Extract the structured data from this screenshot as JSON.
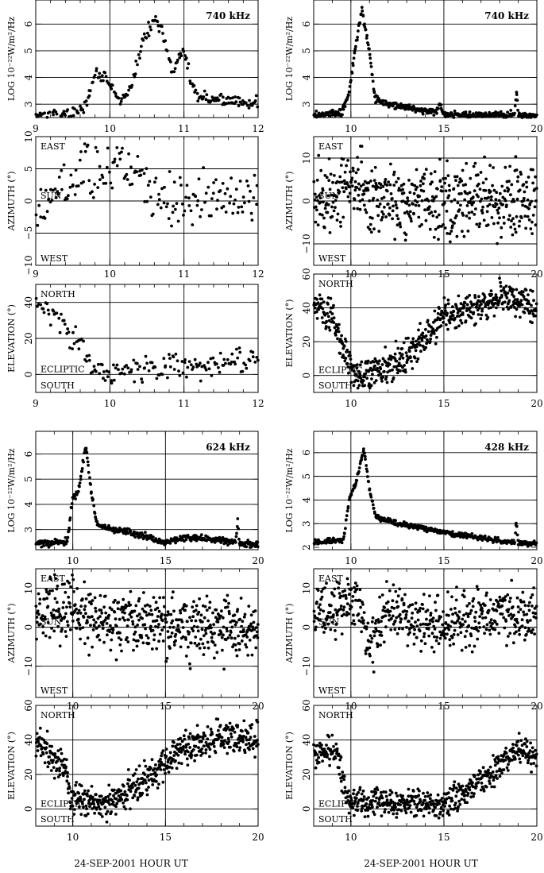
{
  "figure": {
    "xlabel_left": "24-SEP-2001 HOUR UT",
    "xlabel_right": "24-SEP-2001 HOUR UT"
  },
  "chart_data": [
    {
      "id": "g1-flux",
      "type": "scatter",
      "xlabel": "",
      "ylabel": "LOG 10⁻²²W/m²/Hz",
      "xlim": [
        9,
        12
      ],
      "ylim": [
        2.5,
        6.9
      ],
      "xticks": [
        9,
        10,
        11,
        12
      ],
      "yticks": [
        3,
        4,
        5,
        6
      ],
      "grid_x": [
        10,
        11
      ],
      "grid_y": [
        3,
        4,
        5,
        6
      ],
      "annotation": "740 kHz",
      "trend": [
        [
          9,
          2.6
        ],
        [
          9.5,
          2.65
        ],
        [
          9.7,
          3
        ],
        [
          9.8,
          4.2
        ],
        [
          9.95,
          4
        ],
        [
          10.15,
          3
        ],
        [
          10.3,
          3.8
        ],
        [
          10.45,
          5.4
        ],
        [
          10.6,
          6.2
        ],
        [
          10.7,
          5.8
        ],
        [
          10.85,
          4.2
        ],
        [
          11.0,
          5.0
        ],
        [
          11.12,
          3.5
        ],
        [
          11.3,
          3.2
        ],
        [
          12,
          3.05
        ]
      ],
      "npoints": 220,
      "spread": 0.15
    },
    {
      "id": "g1-azimuth",
      "type": "scatter",
      "ylabel": "AZIMUTH (°)",
      "xlim": [
        9,
        12
      ],
      "ylim": [
        -10,
        10
      ],
      "xticks": [
        9,
        10,
        11,
        12
      ],
      "yticks": [
        -10,
        -5,
        0,
        5,
        10
      ],
      "grid_x": [
        10,
        11
      ],
      "grid_y": [
        -5,
        0,
        5
      ],
      "dir_top": "EAST",
      "dir_mid": "SUN",
      "dir_bot": "WEST",
      "trend": [
        [
          9,
          -1
        ],
        [
          9.4,
          3
        ],
        [
          9.8,
          5
        ],
        [
          10.4,
          4
        ],
        [
          10.7,
          0
        ],
        [
          12,
          0.5
        ]
      ],
      "npoints": 180,
      "spread": 2.5
    },
    {
      "id": "g1-elevation",
      "type": "scatter",
      "ylabel": "ELEVATION (°)",
      "xlim": [
        9,
        12
      ],
      "ylim": [
        -10,
        50
      ],
      "xticks": [
        9,
        10,
        11,
        12
      ],
      "yticks": [
        0,
        20,
        40
      ],
      "grid_x": [
        10,
        11
      ],
      "grid_y": [
        0,
        20,
        40
      ],
      "dir_top": "NORTH",
      "dir_mid": "ECLIPTIC",
      "dir_bot": "SOUTH",
      "trend": [
        [
          9,
          40
        ],
        [
          9.3,
          33
        ],
        [
          9.6,
          15
        ],
        [
          9.8,
          0
        ],
        [
          10.3,
          2
        ],
        [
          12,
          8
        ]
      ],
      "npoints": 170,
      "spread": 4.5
    },
    {
      "id": "g2-flux",
      "type": "scatter",
      "ylabel": "LOG 10⁻²²W/m²/Hz",
      "xlim": [
        8,
        20
      ],
      "ylim": [
        2.5,
        6.9
      ],
      "xticks": [
        10,
        15,
        20
      ],
      "yticks": [
        3,
        4,
        5,
        6
      ],
      "grid_x": [
        10,
        15
      ],
      "grid_y": [
        3,
        4,
        5,
        6
      ],
      "annotation": "740 kHz",
      "trend": [
        [
          8,
          2.6
        ],
        [
          9.5,
          2.65
        ],
        [
          9.9,
          3.4
        ],
        [
          10.2,
          5
        ],
        [
          10.6,
          6.5
        ],
        [
          11,
          5
        ],
        [
          11.3,
          3.2
        ],
        [
          12,
          3
        ],
        [
          14.5,
          2.7
        ],
        [
          14.8,
          3
        ],
        [
          15,
          2.6
        ],
        [
          18.8,
          2.6
        ],
        [
          18.9,
          3.6
        ],
        [
          19,
          2.6
        ],
        [
          20,
          2.55
        ]
      ],
      "npoints": 420,
      "spread": 0.08
    },
    {
      "id": "g2-azimuth",
      "type": "scatter",
      "ylabel": "AZIMUTH (°)",
      "xlim": [
        8,
        20
      ],
      "ylim": [
        -15,
        15
      ],
      "xticks": [
        10,
        15,
        20
      ],
      "yticks": [
        -10,
        0,
        10
      ],
      "grid_x": [
        10,
        15
      ],
      "grid_y": [
        -10,
        0,
        10
      ],
      "dir_top": "EAST",
      "dir_mid": "SUN",
      "dir_bot": "WEST",
      "trend": [
        [
          8,
          0
        ],
        [
          9.8,
          4
        ],
        [
          10.5,
          5
        ],
        [
          11,
          0
        ],
        [
          15,
          0
        ],
        [
          20,
          0
        ]
      ],
      "npoints": 520,
      "spread": 5
    },
    {
      "id": "g2-elevation",
      "type": "scatter",
      "ylabel": "ELEVATION (°)",
      "xlim": [
        8,
        20
      ],
      "ylim": [
        -10,
        60
      ],
      "xticks": [
        10,
        15,
        20
      ],
      "yticks": [
        0,
        20,
        40,
        60
      ],
      "grid_x": [
        10,
        15
      ],
      "grid_y": [
        0,
        20,
        40
      ],
      "dir_top": "NORTH",
      "dir_mid": "ECLIPTIC",
      "dir_bot": "SOUTH",
      "trend": [
        [
          8,
          40
        ],
        [
          9,
          35
        ],
        [
          9.8,
          10
        ],
        [
          10.3,
          0
        ],
        [
          12,
          5
        ],
        [
          13,
          12
        ],
        [
          14.5,
          28
        ],
        [
          15,
          35
        ],
        [
          17,
          40
        ],
        [
          18,
          47
        ],
        [
          20,
          40
        ]
      ],
      "npoints": 560,
      "spread": 6
    },
    {
      "id": "g3-flux",
      "type": "scatter",
      "ylabel": "LOG 10⁻²²W/m²/Hz",
      "xlim": [
        8,
        20
      ],
      "ylim": [
        2.2,
        6.9
      ],
      "xticks": [
        10,
        15,
        20
      ],
      "yticks": [
        3,
        4,
        5,
        6
      ],
      "grid_x": [
        10,
        15
      ],
      "grid_y": [
        3,
        4,
        5,
        6
      ],
      "annotation": "624 kHz",
      "trend": [
        [
          8,
          2.45
        ],
        [
          9.7,
          2.5
        ],
        [
          10,
          4.3
        ],
        [
          10.3,
          4.5
        ],
        [
          10.7,
          6.3
        ],
        [
          11,
          4.5
        ],
        [
          11.3,
          3.2
        ],
        [
          12,
          3
        ],
        [
          13,
          2.9
        ],
        [
          15,
          2.5
        ],
        [
          16.2,
          2.7
        ],
        [
          18.8,
          2.5
        ],
        [
          18.9,
          3.4
        ],
        [
          19,
          2.45
        ],
        [
          20,
          2.4
        ]
      ],
      "npoints": 420,
      "spread": 0.08
    },
    {
      "id": "g3-azimuth",
      "type": "scatter",
      "ylabel": "AZIMUTH (°)",
      "xlim": [
        8,
        20
      ],
      "ylim": [
        -18,
        15
      ],
      "xticks": [
        10,
        15,
        20
      ],
      "yticks": [
        -10,
        0,
        10
      ],
      "grid_x": [
        10,
        15
      ],
      "grid_y": [
        -10,
        0,
        10
      ],
      "dir_top": "EAST",
      "dir_mid": "SUN",
      "dir_bot": "WEST",
      "trend": [
        [
          8,
          2
        ],
        [
          10,
          6
        ],
        [
          10.8,
          2
        ],
        [
          13,
          1
        ],
        [
          15,
          0
        ],
        [
          20,
          0
        ]
      ],
      "npoints": 540,
      "spread": 5
    },
    {
      "id": "g3-elevation",
      "type": "scatter",
      "ylabel": "ELEVATION (°)",
      "xlim": [
        8,
        20
      ],
      "ylim": [
        -10,
        60
      ],
      "xticks": [
        10,
        15,
        20
      ],
      "yticks": [
        0,
        20,
        40,
        60
      ],
      "grid_x": [
        10,
        15
      ],
      "grid_y": [
        0,
        20,
        40
      ],
      "dir_top": "NORTH",
      "dir_mid": "ECLIPTIC",
      "dir_bot": "SOUTH",
      "trend": [
        [
          8,
          40
        ],
        [
          9.5,
          25
        ],
        [
          10,
          5
        ],
        [
          12,
          3
        ],
        [
          13,
          10
        ],
        [
          15,
          25
        ],
        [
          16,
          35
        ],
        [
          18,
          42
        ],
        [
          20,
          40
        ]
      ],
      "npoints": 560,
      "spread": 6
    },
    {
      "id": "g4-flux",
      "type": "scatter",
      "ylabel": "LOG 10⁻²²W/m²/Hz",
      "xlim": [
        8,
        20
      ],
      "ylim": [
        1.9,
        6.9
      ],
      "xticks": [
        10,
        15,
        20
      ],
      "yticks": [
        2,
        3,
        4,
        5,
        6
      ],
      "grid_x": [
        10,
        15
      ],
      "grid_y": [
        3,
        4,
        5,
        6
      ],
      "annotation": "428 kHz",
      "trend": [
        [
          8,
          2.2
        ],
        [
          9.6,
          2.3
        ],
        [
          9.9,
          4
        ],
        [
          10.3,
          4.8
        ],
        [
          10.7,
          6.2
        ],
        [
          11,
          4.5
        ],
        [
          11.3,
          3.3
        ],
        [
          12.5,
          3.0
        ],
        [
          14,
          2.8
        ],
        [
          16,
          2.5
        ],
        [
          18.8,
          2.2
        ],
        [
          18.9,
          3.1
        ],
        [
          19,
          2.2
        ],
        [
          20,
          2.15
        ]
      ],
      "npoints": 420,
      "spread": 0.07
    },
    {
      "id": "g4-azimuth",
      "type": "scatter",
      "ylabel": "AZIMUTH (°)",
      "xlim": [
        8,
        20
      ],
      "ylim": [
        -18,
        15
      ],
      "xticks": [
        10,
        15,
        20
      ],
      "yticks": [
        -10,
        0,
        10
      ],
      "grid_x": [
        10,
        15
      ],
      "grid_y": [
        -10,
        0,
        10
      ],
      "dir_top": "EAST",
      "dir_mid": "SUN",
      "dir_bot": "WEST",
      "trend": [
        [
          8,
          2
        ],
        [
          9.8,
          7
        ],
        [
          10.5,
          6
        ],
        [
          11,
          -5
        ],
        [
          11.6,
          0
        ],
        [
          12,
          5
        ],
        [
          13,
          2
        ],
        [
          15,
          0
        ],
        [
          18,
          4
        ],
        [
          20,
          2
        ]
      ],
      "npoints": 520,
      "spread": 4.5
    },
    {
      "id": "g4-elevation",
      "type": "scatter",
      "ylabel": "ELEVATION (°)",
      "xlim": [
        8,
        20
      ],
      "ylim": [
        -10,
        60
      ],
      "xticks": [
        10,
        15,
        20
      ],
      "yticks": [
        0,
        20,
        40,
        60
      ],
      "grid_x": [
        10,
        15
      ],
      "grid_y": [
        0,
        20,
        40
      ],
      "dir_top": "NORTH",
      "dir_mid": "ECLIPTIC",
      "dir_bot": "SOUTH",
      "trend": [
        [
          8,
          30
        ],
        [
          9.2,
          35
        ],
        [
          9.8,
          5
        ],
        [
          15,
          2
        ],
        [
          17,
          15
        ],
        [
          18,
          25
        ],
        [
          19,
          35
        ],
        [
          20,
          30
        ]
      ],
      "npoints": 560,
      "spread": 5
    }
  ]
}
